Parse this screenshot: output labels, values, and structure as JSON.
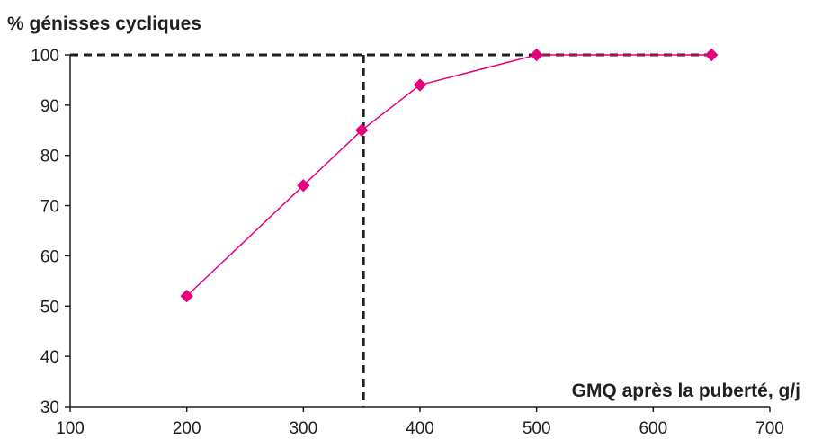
{
  "chart_data": {
    "type": "line",
    "x": [
      200,
      300,
      350,
      400,
      500,
      650
    ],
    "series": [
      {
        "values": [
          52,
          74,
          85,
          94,
          100,
          100
        ]
      }
    ],
    "xlabel": "GMQ après la puberté, g/j",
    "ylabel": "% génisses cycliques",
    "xlim": [
      100,
      700
    ],
    "ylim": [
      30,
      100
    ],
    "xticks": [
      "100",
      "200",
      "300",
      "400",
      "500",
      "600",
      "700"
    ],
    "yticks": [
      "30",
      "40",
      "50",
      "60",
      "70",
      "80",
      "90",
      "100"
    ],
    "reference_lines": {
      "x": 350,
      "y": 100
    },
    "grid": false,
    "colors": {
      "series": "#e5007e",
      "reference": "#231f20",
      "axis": "#231f20"
    }
  }
}
